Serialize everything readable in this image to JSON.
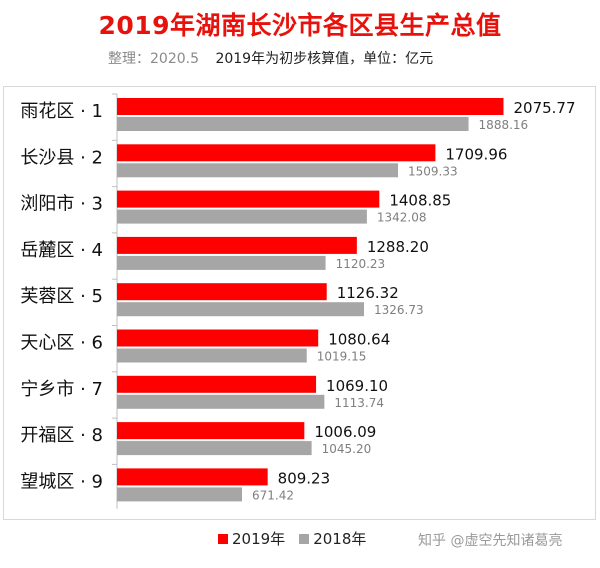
{
  "title": "2019年湖南长沙市各区县生产总值",
  "subtitle": {
    "prepared": "整理：2020.5",
    "note": "2019年为初步核算值，单位：亿元"
  },
  "watermark": "知乎 @虚空先知诸葛亮",
  "colors": {
    "series_2019": "#ff0000",
    "series_2018": "#a6a6a6",
    "title": "#e8120c"
  },
  "chart_data": {
    "type": "bar",
    "orientation": "horizontal",
    "categories": [
      "雨花区 · 1",
      "长沙县 · 2",
      "浏阳市 · 3",
      "岳麓区 · 4",
      "芙蓉区 · 5",
      "天心区 · 6",
      "宁乡市 · 7",
      "开福区 · 8",
      "望城区 · 9"
    ],
    "series": [
      {
        "name": "2019年",
        "color": "#ff0000",
        "values": [
          2075.77,
          1709.96,
          1408.85,
          1288.2,
          1126.32,
          1080.64,
          1069.1,
          1006.09,
          809.23
        ],
        "labels": [
          "2075.77",
          "1709.96",
          "1408.85",
          "1288.20",
          "1126.32",
          "1080.64",
          "1069.10",
          "1006.09",
          "809.23"
        ]
      },
      {
        "name": "2018年",
        "color": "#a6a6a6",
        "values": [
          1888.16,
          1509.33,
          1342.08,
          1120.23,
          1326.73,
          1019.15,
          1113.74,
          1045.2,
          671.42
        ],
        "labels": [
          "1888.16",
          "1509.33",
          "1342.08",
          "1120.23",
          "1326.73",
          "1019.15",
          "1113.74",
          "1045.20",
          "671.42"
        ]
      }
    ],
    "xlim": [
      0,
      2100
    ],
    "grid": false,
    "legend": "bottom"
  }
}
